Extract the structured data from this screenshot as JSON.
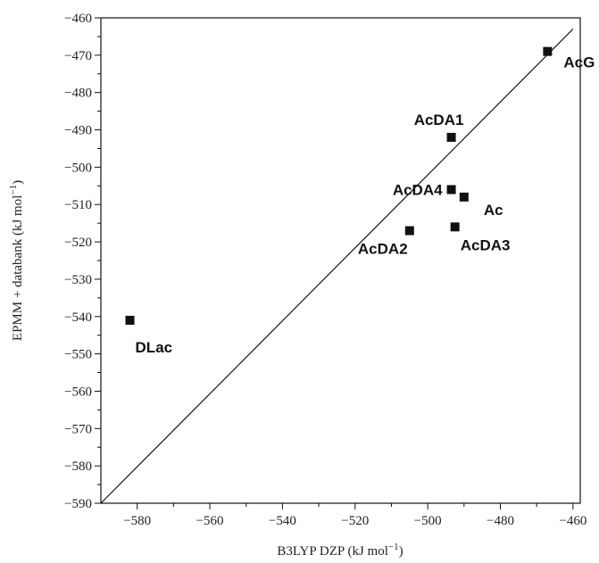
{
  "chart_data": {
    "type": "scatter",
    "title": "",
    "xlabel": "B3LYP DZP (kJ mol",
    "xlabel_sup": "−1",
    "xlabel_end": ")",
    "ylabel": "EPMM + databank (kJ mol",
    "ylabel_sup": "−1",
    "ylabel_end": ")",
    "xlim": [
      -590,
      -458
    ],
    "ylim": [
      -590,
      -460
    ],
    "xticks": [
      -580,
      -560,
      -540,
      -520,
      -500,
      -480,
      -460
    ],
    "xtick_labels": [
      "−580",
      "−560",
      "−540",
      "−520",
      "−500",
      "−480",
      "−460"
    ],
    "yticks": [
      -590,
      -580,
      -570,
      -560,
      -550,
      -540,
      -530,
      -520,
      -510,
      -500,
      -490,
      -480,
      -470,
      -460
    ],
    "ytick_labels": [
      "−590",
      "−580",
      "−570",
      "−560",
      "−550",
      "−540",
      "−530",
      "−520",
      "−510",
      "−500",
      "−490",
      "−480",
      "−470",
      "−460"
    ],
    "grid": false,
    "reference_line": {
      "x": [
        -590,
        -460
      ],
      "y": [
        -590,
        -463
      ]
    },
    "points": [
      {
        "label": "AcG",
        "x": -467,
        "y": -469,
        "anchor": "right-below"
      },
      {
        "label": "AcDA1",
        "x": -493.5,
        "y": -492,
        "anchor": "above-left"
      },
      {
        "label": "AcDA4",
        "x": -493.5,
        "y": -506,
        "anchor": "left"
      },
      {
        "label": "Ac",
        "x": -490,
        "y": -508,
        "anchor": "right-below"
      },
      {
        "label": "AcDA2",
        "x": -505,
        "y": -517,
        "anchor": "below-left"
      },
      {
        "label": "AcDA3",
        "x": -492.5,
        "y": -516,
        "anchor": "below-right"
      },
      {
        "label": "DLac",
        "x": -582,
        "y": -541,
        "anchor": "below-right"
      }
    ]
  }
}
